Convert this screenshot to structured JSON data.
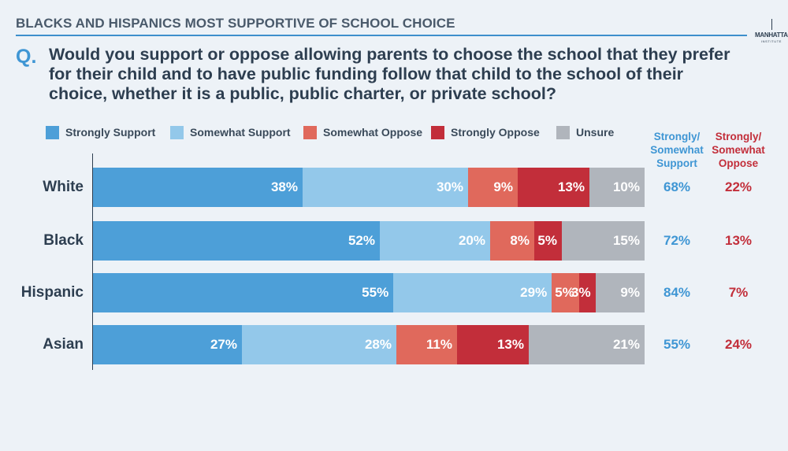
{
  "header": {
    "title": "BLACKS AND HISPANICS MOST SUPPORTIVE OF SCHOOL CHOICE",
    "logo_main": "MANHATTAN",
    "logo_sub": "INSTITUTE"
  },
  "question": {
    "label": "Q.",
    "text": "Would you support or oppose allowing parents to choose the school that they prefer for their child and to have public funding follow that child to the school of their choice, whether it is a public, public charter, or private school?"
  },
  "colors": {
    "strongly_support": "#4d9fd8",
    "somewhat_support": "#93c8ea",
    "somewhat_oppose": "#e0695c",
    "strongly_oppose": "#c22e3a",
    "unsure": "#b0b5bc",
    "support_text": "#3f96d4",
    "oppose_text": "#c22e3a"
  },
  "summary_headers": {
    "support": [
      "Strongly/",
      "Somewhat",
      "Support"
    ],
    "oppose": [
      "Strongly/",
      "Somewhat",
      "Oppose"
    ]
  },
  "chart_data": {
    "type": "bar",
    "orientation": "horizontal",
    "stacked": true,
    "categories": [
      "White",
      "Black",
      "Hispanic",
      "Asian"
    ],
    "series": [
      {
        "name": "Strongly Support",
        "values": [
          38,
          52,
          55,
          27
        ]
      },
      {
        "name": "Somewhat Support",
        "values": [
          30,
          20,
          29,
          28
        ]
      },
      {
        "name": "Somewhat Oppose",
        "values": [
          9,
          8,
          5,
          11
        ]
      },
      {
        "name": "Strongly Oppose",
        "values": [
          13,
          5,
          3,
          13
        ]
      },
      {
        "name": "Unsure",
        "values": [
          10,
          15,
          9,
          21
        ]
      }
    ],
    "value_labels": [
      [
        "38%",
        "30%",
        "9%",
        "13%",
        "10%"
      ],
      [
        "52%",
        "20%",
        "8%",
        "5%",
        "15%"
      ],
      [
        "55%",
        "29%",
        "5%",
        "3%",
        "9%"
      ],
      [
        "27%",
        "28%",
        "11%",
        "13%",
        "21%"
      ]
    ],
    "totals": {
      "support": [
        "68%",
        "72%",
        "84%",
        "55%"
      ],
      "oppose": [
        "22%",
        "13%",
        "7%",
        "24%"
      ]
    },
    "title": "BLACKS AND HISPANICS MOST SUPPORTIVE OF SCHOOL CHOICE",
    "xlabel": "",
    "ylabel": "",
    "xlim": [
      0,
      100
    ],
    "legend_position": "top"
  }
}
